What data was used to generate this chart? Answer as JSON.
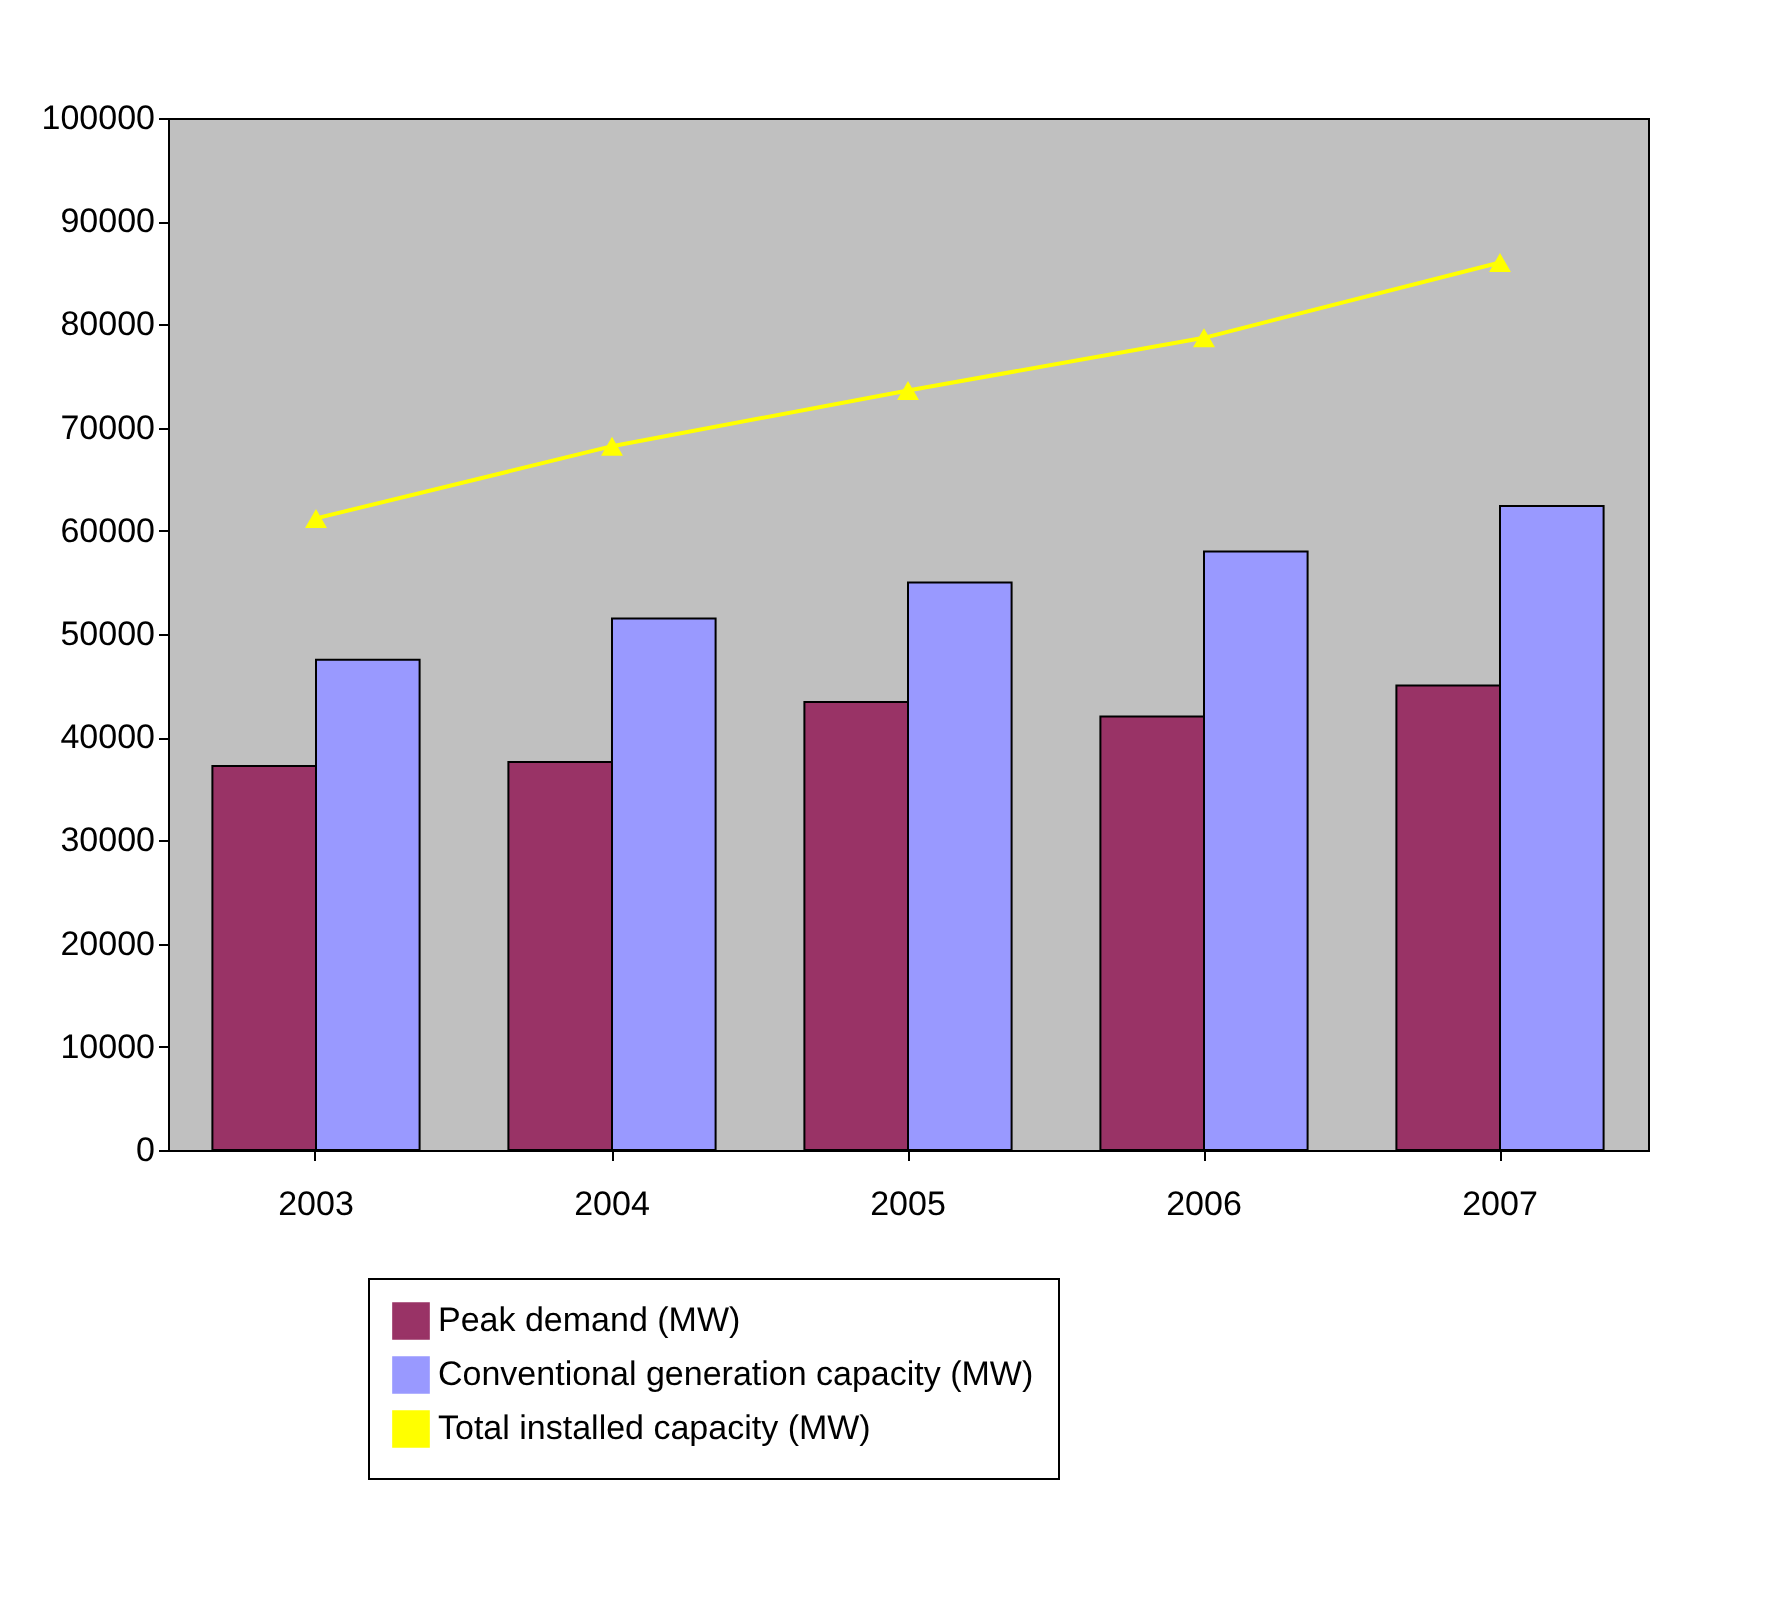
{
  "chart_data": {
    "type": "bar",
    "categories": [
      "2003",
      "2004",
      "2005",
      "2006",
      "2007"
    ],
    "series": [
      {
        "name": "Peak demand (MW)",
        "color": "#993366",
        "values": [
          37200,
          37600,
          43400,
          42000,
          45000
        ]
      },
      {
        "name": "Conventional generation capacity (MW)",
        "color": "#9999ff",
        "values": [
          47500,
          51500,
          55000,
          58000,
          62400
        ]
      },
      {
        "name": "Total installed capacity (MW)",
        "color": "#ffff00",
        "type": "line",
        "marker": "triangle",
        "values": [
          61200,
          68200,
          73600,
          78700,
          86000
        ]
      }
    ],
    "ylim": [
      0,
      100000
    ],
    "yticks": [
      0,
      10000,
      20000,
      30000,
      40000,
      50000,
      60000,
      70000,
      80000,
      90000,
      100000
    ],
    "grid": false,
    "legend": "bottom"
  }
}
